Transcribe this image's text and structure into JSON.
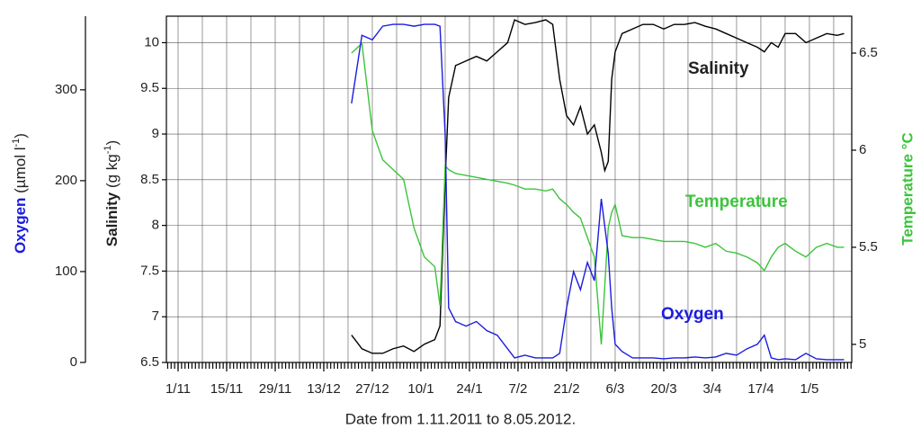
{
  "chart_data": {
    "type": "line",
    "xlabel": "Date from 1.11.2011 to 8.05.2012.",
    "ylabel": [
      "Salinity",
      " (g kg",
      "-1",
      ")"
    ],
    "y2label": "Temperature °C",
    "y3label": [
      "Oxygen",
      " (µmol l",
      "-1",
      ")"
    ],
    "x": [
      50,
      53,
      56,
      59,
      62,
      65,
      68,
      71,
      74,
      75.5,
      77,
      78,
      80,
      83,
      86,
      89,
      92,
      95,
      97,
      100,
      103,
      106,
      108,
      110,
      112,
      114,
      116,
      118,
      120,
      122,
      123,
      124,
      125,
      126,
      128,
      131,
      134,
      137,
      140,
      143,
      146,
      149,
      152,
      155,
      158,
      161,
      164,
      167,
      169,
      171,
      173,
      175,
      178,
      181,
      184,
      187,
      190,
      192
    ],
    "xlim": [
      -3.37,
      194.2
    ],
    "xticks": [
      {
        "value": 0,
        "label": "1/11"
      },
      {
        "value": 14,
        "label": "15/11"
      },
      {
        "value": 28,
        "label": "29/11"
      },
      {
        "value": 42,
        "label": "13/12"
      },
      {
        "value": 56,
        "label": "27/12"
      },
      {
        "value": 70,
        "label": "10/1"
      },
      {
        "value": 84,
        "label": "24/1"
      },
      {
        "value": 98,
        "label": "7/2"
      },
      {
        "value": 112,
        "label": "21/2"
      },
      {
        "value": 126,
        "label": "6/3"
      },
      {
        "value": 140,
        "label": "20/3"
      },
      {
        "value": 154,
        "label": "3/4"
      },
      {
        "value": 168,
        "label": "17/4"
      },
      {
        "value": 182,
        "label": "1/5"
      }
    ],
    "xminor_step": 1,
    "xgrid_step": 7,
    "ylim": [
      6.5,
      10.29
    ],
    "yticks": [
      6.5,
      7,
      7.5,
      8,
      8.5,
      9,
      9.5,
      10
    ],
    "y2lim": [
      4.907,
      6.69
    ],
    "y2ticks": [
      5,
      5.5,
      6,
      6.5
    ],
    "y3lim": [
      0,
      381
    ],
    "y3ticks": [
      0,
      100,
      200,
      300
    ],
    "grid": true,
    "series": [
      {
        "name": "Salinity",
        "color": "#000000",
        "axis": "y",
        "values": [
          6.8,
          6.65,
          6.6,
          6.6,
          6.65,
          6.68,
          6.62,
          6.7,
          6.75,
          6.9,
          8.5,
          9.4,
          9.75,
          9.8,
          9.85,
          9.8,
          9.9,
          10.0,
          10.25,
          10.2,
          10.22,
          10.25,
          10.2,
          9.6,
          9.2,
          9.1,
          9.3,
          9.0,
          9.1,
          8.8,
          8.6,
          8.7,
          9.6,
          9.9,
          10.1,
          10.15,
          10.2,
          10.2,
          10.15,
          10.2,
          10.2,
          10.22,
          10.18,
          10.15,
          10.1,
          10.05,
          10.0,
          9.95,
          9.9,
          10.0,
          9.95,
          10.1,
          10.1,
          10.0,
          10.05,
          10.1,
          10.08,
          10.1
        ]
      },
      {
        "name": "Temperature",
        "color": "#3cc43c",
        "axis": "y2",
        "values": [
          6.5,
          6.55,
          6.1,
          5.95,
          5.9,
          5.85,
          5.6,
          5.45,
          5.4,
          5.2,
          5.92,
          5.9,
          5.88,
          5.87,
          5.86,
          5.85,
          5.84,
          5.83,
          5.82,
          5.8,
          5.8,
          5.79,
          5.8,
          5.75,
          5.72,
          5.68,
          5.65,
          5.55,
          5.45,
          5.0,
          5.3,
          5.6,
          5.68,
          5.72,
          5.56,
          5.55,
          5.55,
          5.54,
          5.53,
          5.53,
          5.53,
          5.52,
          5.5,
          5.52,
          5.48,
          5.47,
          5.45,
          5.42,
          5.38,
          5.45,
          5.5,
          5.52,
          5.48,
          5.45,
          5.5,
          5.52,
          5.5,
          5.5
        ]
      },
      {
        "name": "Oxygen",
        "color": "#1c1ce0",
        "axis": "y3",
        "values": [
          285,
          360,
          355,
          370,
          372,
          372,
          370,
          372,
          372,
          370,
          250,
          60,
          45,
          40,
          45,
          35,
          30,
          15,
          5,
          8,
          5,
          5,
          5,
          10,
          60,
          100,
          80,
          110,
          90,
          180,
          150,
          120,
          60,
          20,
          12,
          5,
          5,
          5,
          4,
          5,
          5,
          6,
          5,
          6,
          10,
          8,
          15,
          20,
          30,
          5,
          3,
          4,
          3,
          10,
          4,
          3,
          3,
          3
        ]
      }
    ]
  }
}
